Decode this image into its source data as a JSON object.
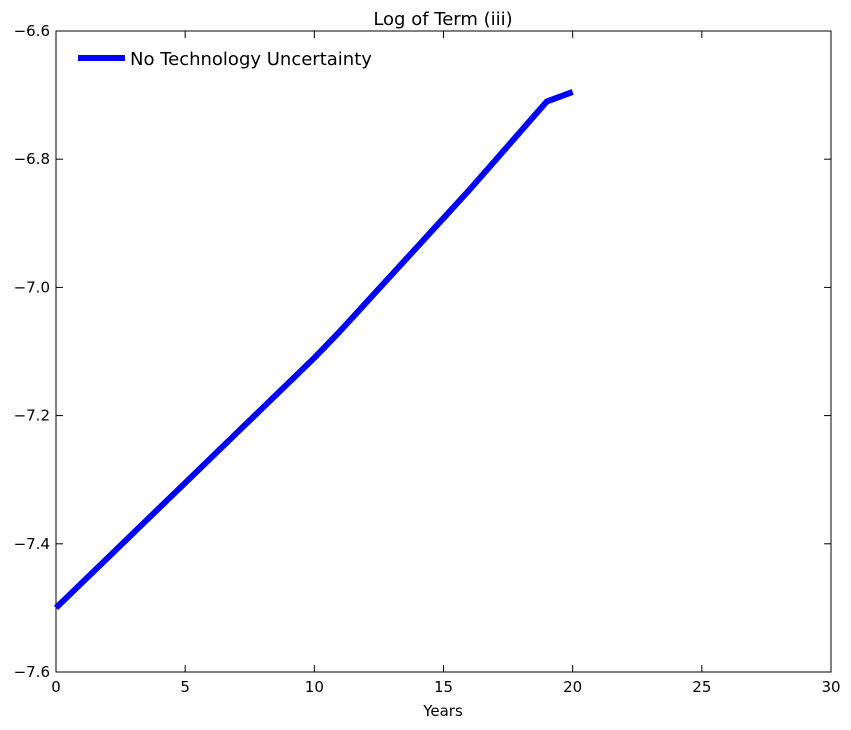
{
  "chart_data": {
    "type": "line",
    "title": "Log of Term (iii)",
    "xlabel": "Years",
    "ylabel": "",
    "xlim": [
      0,
      30
    ],
    "ylim": [
      -7.6,
      -6.6
    ],
    "xticks": [
      0,
      5,
      10,
      15,
      20,
      25,
      30
    ],
    "xtick_labels": [
      "0",
      "5",
      "10",
      "15",
      "20",
      "25",
      "30"
    ],
    "yticks": [
      -7.6,
      -7.4,
      -7.2,
      -7.0,
      -6.8,
      -6.6
    ],
    "ytick_labels": [
      "−7.6",
      "−7.4",
      "−7.2",
      "−7.0",
      "−6.8",
      "−6.6"
    ],
    "grid": false,
    "legend": {
      "position": "top-left",
      "frame": false
    },
    "series": [
      {
        "name": "No Technology Uncertainty",
        "color": "#0000ff",
        "x": [
          0,
          1,
          2,
          3,
          4,
          5,
          6,
          7,
          8,
          9,
          10,
          11,
          12,
          13,
          14,
          15,
          16,
          17,
          18,
          19,
          20
        ],
        "y": [
          -7.5,
          -7.461,
          -7.422,
          -7.383,
          -7.344,
          -7.305,
          -7.266,
          -7.227,
          -7.188,
          -7.149,
          -7.11,
          -7.068,
          -7.024,
          -6.98,
          -6.936,
          -6.892,
          -6.848,
          -6.802,
          -6.756,
          -6.71,
          -6.695
        ]
      }
    ]
  }
}
